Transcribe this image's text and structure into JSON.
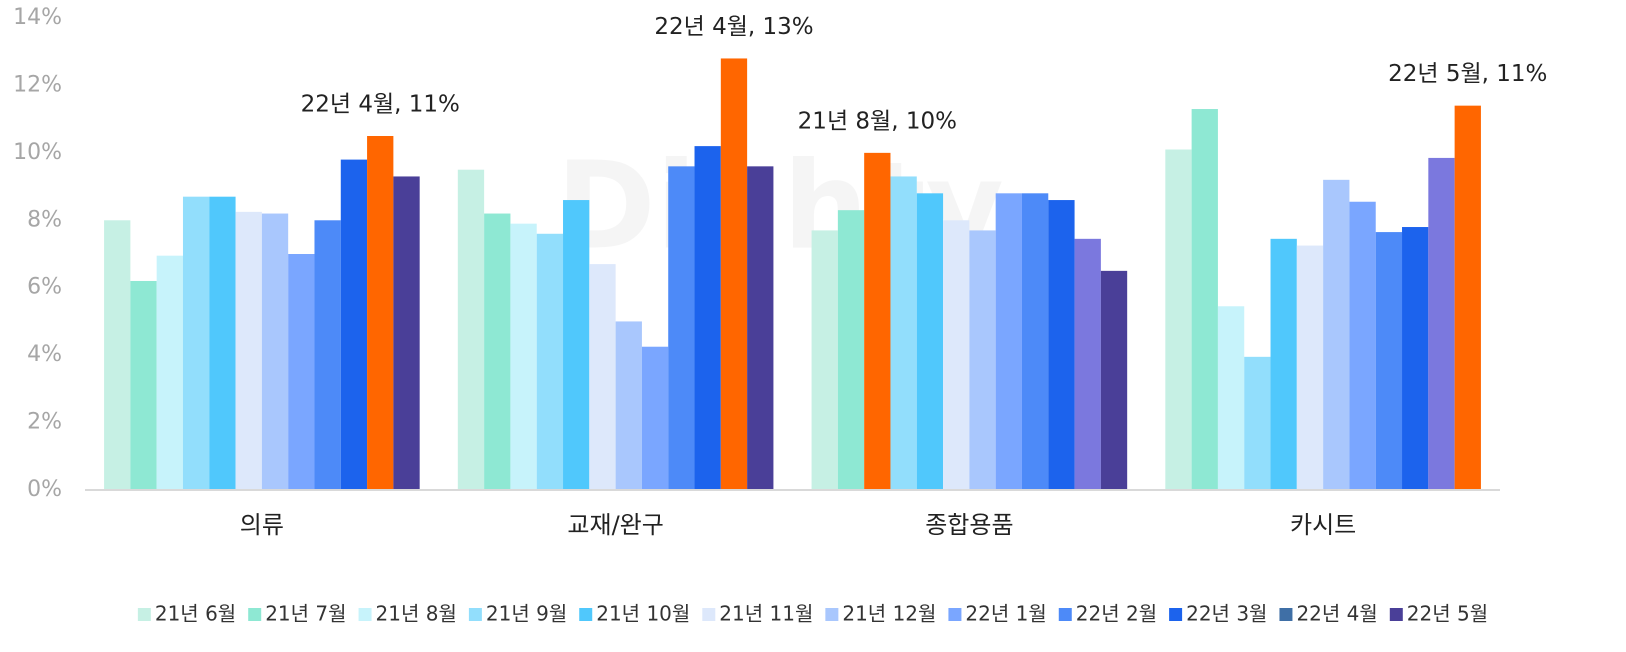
{
  "chart_data": {
    "type": "bar",
    "watermark": "Dighty",
    "categories": [
      "의류",
      "교재/완구",
      "종합용품",
      "카시트"
    ],
    "series": [
      {
        "name": "21년 6월",
        "color": "#c6f0e4",
        "values": [
          8.0,
          9.5,
          7.7,
          10.1
        ]
      },
      {
        "name": "21년 7월",
        "color": "#8ee8d3",
        "values": [
          6.2,
          8.2,
          8.3,
          11.3
        ]
      },
      {
        "name": "21년 8월",
        "color": "#c7f3fb",
        "values": [
          6.95,
          7.9,
          10.0,
          5.45
        ]
      },
      {
        "name": "21년 9월",
        "color": "#92defc",
        "values": [
          8.7,
          7.6,
          9.3,
          3.95
        ]
      },
      {
        "name": "21년 10월",
        "color": "#50c8fc",
        "values": [
          8.7,
          8.6,
          8.8,
          7.45
        ]
      },
      {
        "name": "21년 11월",
        "color": "#dde8fb",
        "values": [
          8.25,
          6.7,
          8.0,
          7.25
        ]
      },
      {
        "name": "21년 12월",
        "color": "#a9c7fd",
        "values": [
          8.2,
          5.0,
          7.7,
          9.2
        ]
      },
      {
        "name": "22년 1월",
        "color": "#7aa6ff",
        "values": [
          7.0,
          4.25,
          8.8,
          8.55
        ]
      },
      {
        "name": "22년 2월",
        "color": "#4d8af8",
        "values": [
          8.0,
          9.6,
          8.8,
          7.65
        ]
      },
      {
        "name": "22년 3월",
        "color": "#1c63ed",
        "values": [
          9.8,
          10.2,
          8.6,
          7.8
        ]
      },
      {
        "name": "22년 4월",
        "color": "#7b78de",
        "legend_color": "#3f6fa6",
        "values": [
          10.5,
          12.8,
          7.45,
          9.85
        ]
      },
      {
        "name": "22년 5월",
        "color": "#4a3f98",
        "values": [
          9.3,
          9.6,
          6.5,
          11.4
        ]
      }
    ],
    "highlight_color": "#ff6600",
    "annotations": [
      {
        "text": "22년 4월, 11%",
        "category": "의류",
        "series": "22년 4월"
      },
      {
        "text": "22년 4월, 13%",
        "category": "교재/완구",
        "series": "22년 4월"
      },
      {
        "text": "21년 8월, 10%",
        "category": "종합용품",
        "series": "21년 8월"
      },
      {
        "text": "22년 5월, 11%",
        "category": "카시트",
        "series": "22년 5월"
      }
    ],
    "ylim": [
      0,
      14
    ],
    "yticks": [
      {
        "value": 0,
        "label": "0%"
      },
      {
        "value": 2,
        "label": "2%"
      },
      {
        "value": 4,
        "label": "4%"
      },
      {
        "value": 6,
        "label": "6%"
      },
      {
        "value": 8,
        "label": "8%"
      },
      {
        "value": 10,
        "label": "10%"
      },
      {
        "value": 12,
        "label": "12%"
      },
      {
        "value": 14,
        "label": "14%"
      }
    ],
    "grid": false,
    "legend": "bottom"
  }
}
